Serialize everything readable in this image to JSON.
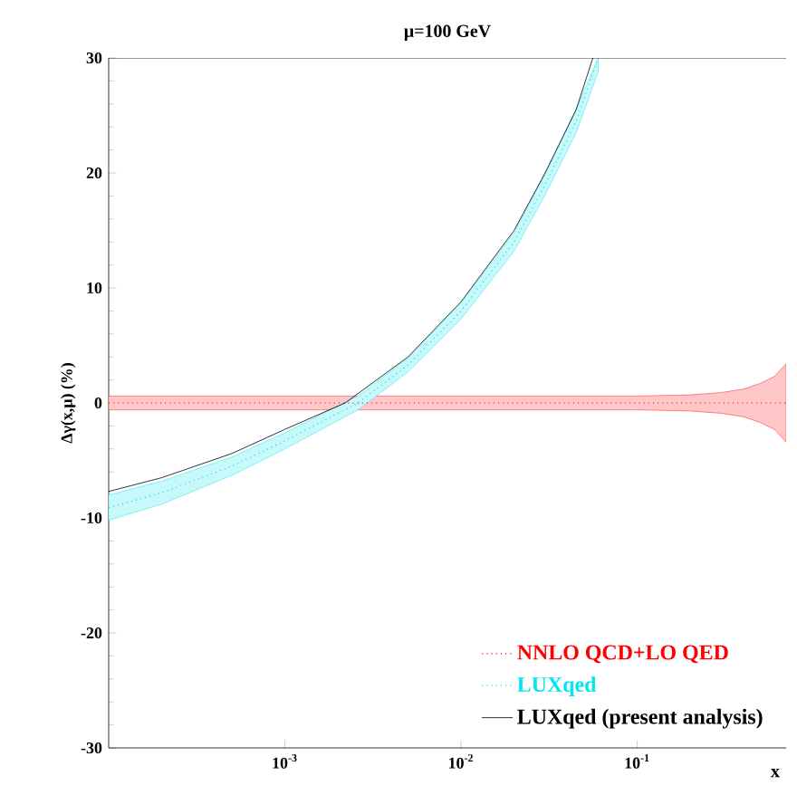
{
  "chart_data": {
    "type": "line",
    "title": "μ=100 GeV",
    "xlabel": "x",
    "ylabel": "Δγ(x,μ) (%)",
    "log": "x",
    "xlim": [
      0.0001,
      0.7
    ],
    "ylim": [
      -30,
      30
    ],
    "xticks": [
      {
        "value": 0.001,
        "label": "10$^{-3}$"
      },
      {
        "value": 0.01,
        "label": "10$^{-2}$"
      },
      {
        "value": 0.1,
        "label": "10$^{-1}$"
      }
    ],
    "yticks": [
      -30,
      -20,
      -10,
      0,
      10,
      20,
      30
    ],
    "legend": "bottom right",
    "series": [
      {
        "name": "NNLO QCD+LO QED",
        "color": "#ff0000",
        "line_style": "dotted",
        "x": [
          0.0001,
          0.001,
          0.01,
          0.1,
          0.2,
          0.3,
          0.4,
          0.5,
          0.6,
          0.7
        ],
        "values": [
          0,
          0,
          0,
          0,
          0,
          0,
          0,
          0,
          0,
          0
        ],
        "lower": [
          -0.6,
          -0.6,
          -0.6,
          -0.6,
          -0.7,
          -0.9,
          -1.2,
          -1.7,
          -2.3,
          -3.4
        ],
        "upper": [
          0.6,
          0.6,
          0.6,
          0.6,
          0.7,
          0.9,
          1.2,
          1.7,
          2.3,
          3.4
        ]
      },
      {
        "name": "LUXqed",
        "color": "#00e5ee",
        "line_style": "dotted",
        "x": [
          0.0001,
          0.0002,
          0.0005,
          0.001,
          0.0026,
          0.005,
          0.01,
          0.02,
          0.03,
          0.045,
          0.06
        ],
        "values": [
          -9.1,
          -7.8,
          -5.5,
          -3.3,
          0,
          3.3,
          8,
          14,
          19,
          24.5,
          30
        ],
        "lower": [
          -10.2,
          -8.8,
          -6.3,
          -4,
          -0.6,
          2.7,
          7.3,
          13.2,
          18.1,
          23.5,
          28.8
        ],
        "upper": [
          -8,
          -6.8,
          -4.7,
          -2.6,
          0.6,
          3.9,
          8.7,
          14.8,
          19.9,
          25.5,
          30
        ]
      },
      {
        "name": "LUXqed (present analysis)",
        "color": "#000000",
        "line_style": "solid",
        "x": [
          0.0001,
          0.0002,
          0.0005,
          0.001,
          0.0022,
          0.005,
          0.01,
          0.02,
          0.03,
          0.045,
          0.056
        ],
        "values": [
          -7.7,
          -6.5,
          -4.4,
          -2.3,
          0,
          4,
          8.8,
          15,
          20,
          25.5,
          30
        ]
      }
    ]
  }
}
